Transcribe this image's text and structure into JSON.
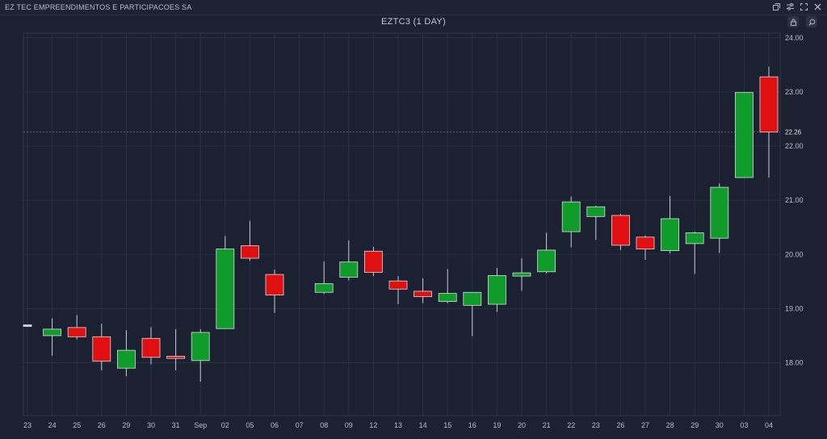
{
  "window": {
    "company": "EZ TEC EMPREENDIMENTOS E PARTICIPACOES SA",
    "icons": [
      "restore-icon",
      "settings-icon",
      "expand-icon",
      "close-icon"
    ]
  },
  "toolbar": {
    "lock_icon": "lock-icon",
    "zoom_icon": "zoom-icon"
  },
  "colors": {
    "up": "#109c2a",
    "down": "#e00f10",
    "background": "#1b2131",
    "grid": "#2a3142"
  },
  "chart_data": {
    "type": "candlestick",
    "title": "EZTC3 (1 DAY)",
    "ylim": [
      17.0,
      24.0
    ],
    "yticks": [
      "18.00",
      "19.00",
      "20.00",
      "21.00",
      "22.00",
      "23.00",
      "24.00"
    ],
    "last_price": "22.26",
    "categories": [
      "23",
      "24",
      "25",
      "26",
      "29",
      "30",
      "31",
      "Sep",
      "02",
      "05",
      "06",
      "07",
      "08",
      "09",
      "12",
      "13",
      "14",
      "15",
      "16",
      "19",
      "20",
      "21",
      "22",
      "23",
      "26",
      "27",
      "28",
      "29",
      "30",
      "03",
      "04"
    ],
    "candles": [
      {
        "x": "23",
        "open": 18.7,
        "high": 18.7,
        "low": 18.68,
        "close": 18.68
      },
      {
        "x": "24",
        "open": 18.5,
        "high": 18.82,
        "low": 18.13,
        "close": 18.62
      },
      {
        "x": "25",
        "open": 18.65,
        "high": 18.88,
        "low": 18.43,
        "close": 18.48
      },
      {
        "x": "26",
        "open": 18.48,
        "high": 18.72,
        "low": 17.86,
        "close": 18.03
      },
      {
        "x": "29",
        "open": 17.9,
        "high": 18.6,
        "low": 17.75,
        "close": 18.23
      },
      {
        "x": "30",
        "open": 18.45,
        "high": 18.66,
        "low": 17.97,
        "close": 18.1
      },
      {
        "x": "31",
        "open": 18.12,
        "high": 18.62,
        "low": 17.86,
        "close": 18.08
      },
      {
        "x": "Sep",
        "open": 18.04,
        "high": 18.62,
        "low": 17.65,
        "close": 18.56
      },
      {
        "x": "02",
        "open": 18.63,
        "high": 20.34,
        "low": 18.63,
        "close": 20.1
      },
      {
        "x": "05",
        "open": 20.16,
        "high": 20.62,
        "low": 19.88,
        "close": 19.93
      },
      {
        "x": "06",
        "open": 19.63,
        "high": 19.72,
        "low": 18.92,
        "close": 19.25
      },
      {
        "x": "07",
        "open": null,
        "high": null,
        "low": null,
        "close": null
      },
      {
        "x": "08",
        "open": 19.3,
        "high": 19.87,
        "low": 19.27,
        "close": 19.46
      },
      {
        "x": "09",
        "open": 19.58,
        "high": 20.26,
        "low": 19.52,
        "close": 19.86
      },
      {
        "x": "12",
        "open": 20.06,
        "high": 20.14,
        "low": 19.6,
        "close": 19.67
      },
      {
        "x": "13",
        "open": 19.51,
        "high": 19.6,
        "low": 19.08,
        "close": 19.36
      },
      {
        "x": "14",
        "open": 19.32,
        "high": 19.56,
        "low": 19.1,
        "close": 19.22
      },
      {
        "x": "15",
        "open": 19.13,
        "high": 19.73,
        "low": 19.1,
        "close": 19.28
      },
      {
        "x": "16",
        "open": 19.06,
        "high": 19.3,
        "low": 18.49,
        "close": 19.3
      },
      {
        "x": "19",
        "open": 19.08,
        "high": 19.75,
        "low": 18.94,
        "close": 19.61
      },
      {
        "x": "20",
        "open": 19.6,
        "high": 19.93,
        "low": 19.33,
        "close": 19.66
      },
      {
        "x": "21",
        "open": 19.68,
        "high": 20.4,
        "low": 19.65,
        "close": 20.08
      },
      {
        "x": "22",
        "open": 20.42,
        "high": 21.07,
        "low": 20.13,
        "close": 20.97
      },
      {
        "x": "23",
        "open": 20.7,
        "high": 20.9,
        "low": 20.27,
        "close": 20.88
      },
      {
        "x": "26",
        "open": 20.72,
        "high": 20.75,
        "low": 20.08,
        "close": 20.17
      },
      {
        "x": "27",
        "open": 20.32,
        "high": 20.35,
        "low": 19.9,
        "close": 20.1
      },
      {
        "x": "28",
        "open": 20.07,
        "high": 21.08,
        "low": 20.02,
        "close": 20.66
      },
      {
        "x": "29",
        "open": 20.2,
        "high": 20.42,
        "low": 19.64,
        "close": 20.4
      },
      {
        "x": "30",
        "open": 20.3,
        "high": 21.31,
        "low": 20.03,
        "close": 21.24
      },
      {
        "x": "03",
        "open": 21.42,
        "high": 23.0,
        "low": 21.42,
        "close": 22.99
      },
      {
        "x": "04",
        "open": 23.28,
        "high": 23.47,
        "low": 21.42,
        "close": 22.26
      }
    ]
  }
}
